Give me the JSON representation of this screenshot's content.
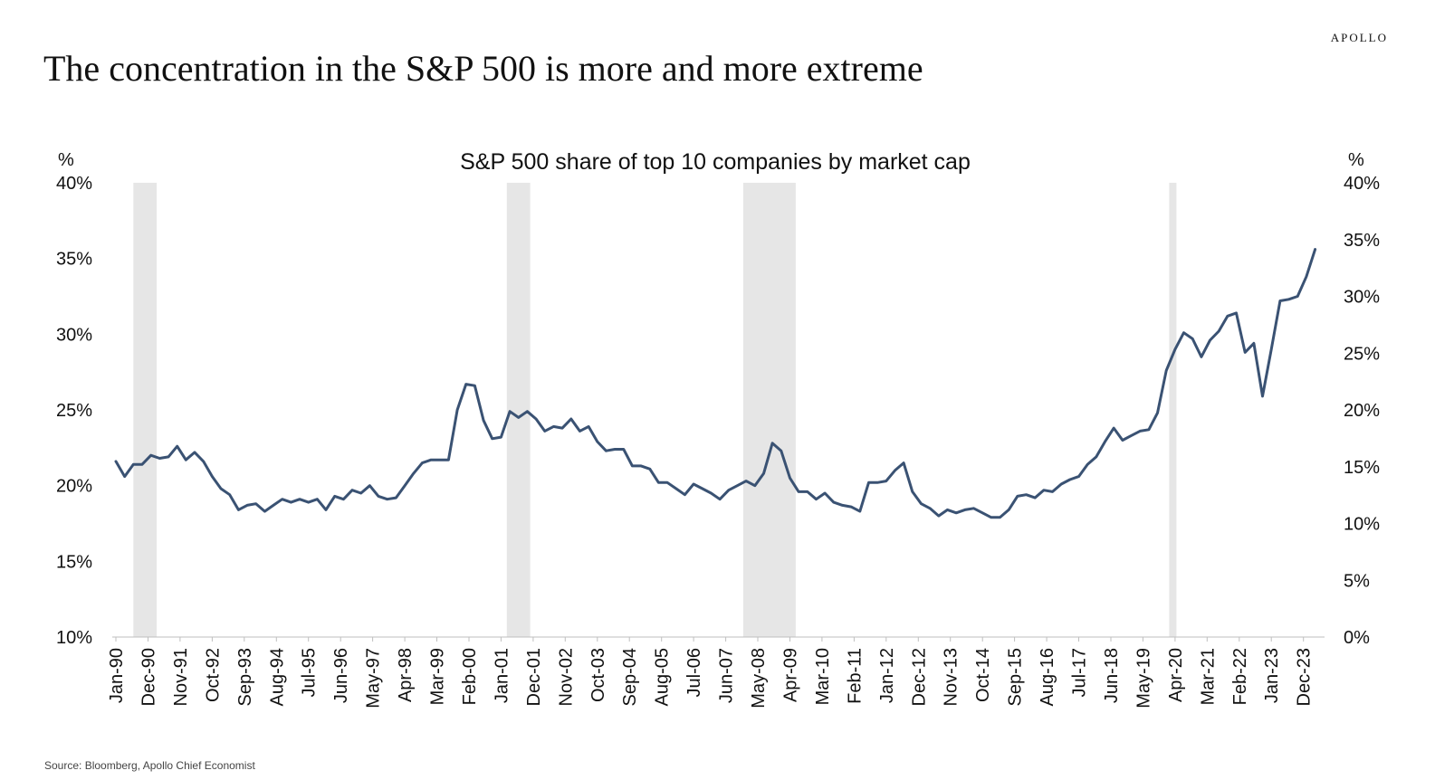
{
  "brand": "APOLLO",
  "headline": "The concentration in the S&P 500 is more and more extreme",
  "source": "Source: Bloomberg, Apollo Chief Economist",
  "colors": {
    "series_line": "#3a5273",
    "recession_shading": "#e6e6e6"
  },
  "chart_data": {
    "type": "line",
    "title": "S&P 500 share of top 10 companies by market cap",
    "y_left_unit": "%",
    "y_right_unit": "%",
    "y_left_ticks": [
      "40%",
      "35%",
      "30%",
      "25%",
      "20%",
      "15%",
      "10%"
    ],
    "y_right_ticks": [
      "40%",
      "35%",
      "30%",
      "25%",
      "20%",
      "15%",
      "10%",
      "5%",
      "0%"
    ],
    "ylim_left": [
      10,
      40
    ],
    "ylim_right": [
      0,
      40
    ],
    "x_ticks": [
      "Jan-90",
      "Dec-90",
      "Nov-91",
      "Oct-92",
      "Sep-93",
      "Aug-94",
      "Jul-95",
      "Jun-96",
      "May-97",
      "Apr-98",
      "Mar-99",
      "Feb-00",
      "Jan-01",
      "Dec-01",
      "Nov-02",
      "Oct-03",
      "Sep-04",
      "Aug-05",
      "Jul-06",
      "Jun-07",
      "May-08",
      "Apr-09",
      "Mar-10",
      "Feb-11",
      "Jan-12",
      "Dec-12",
      "Nov-13",
      "Oct-14",
      "Sep-15",
      "Aug-16",
      "Jul-17",
      "Jun-18",
      "May-19",
      "Apr-20",
      "Mar-21",
      "Feb-22",
      "Jan-23",
      "Dec-23"
    ],
    "x_range": [
      "Jan-90",
      "Jun-24"
    ],
    "grid": false,
    "legend": "none",
    "recessions": [
      {
        "start": "Jul-90",
        "end": "Mar-91"
      },
      {
        "start": "Mar-01",
        "end": "Nov-01"
      },
      {
        "start": "Dec-07",
        "end": "Jun-09"
      },
      {
        "start": "Feb-20",
        "end": "Apr-20"
      }
    ],
    "series": [
      {
        "axis": "left",
        "points": [
          [
            "Jan-90",
            21.6
          ],
          [
            "Apr-90",
            20.6
          ],
          [
            "Jul-90",
            21.4
          ],
          [
            "Oct-90",
            21.4
          ],
          [
            "Jan-91",
            22.0
          ],
          [
            "Apr-91",
            21.8
          ],
          [
            "Jul-91",
            21.9
          ],
          [
            "Oct-91",
            22.6
          ],
          [
            "Jan-92",
            21.7
          ],
          [
            "Apr-92",
            22.2
          ],
          [
            "Jul-92",
            21.6
          ],
          [
            "Oct-92",
            20.6
          ],
          [
            "Jan-93",
            19.8
          ],
          [
            "Apr-93",
            19.4
          ],
          [
            "Jul-93",
            18.4
          ],
          [
            "Oct-93",
            18.7
          ],
          [
            "Jan-94",
            18.8
          ],
          [
            "Apr-94",
            18.3
          ],
          [
            "Jul-94",
            18.7
          ],
          [
            "Oct-94",
            19.1
          ],
          [
            "Jan-95",
            18.9
          ],
          [
            "Apr-95",
            19.1
          ],
          [
            "Jul-95",
            18.9
          ],
          [
            "Oct-95",
            19.1
          ],
          [
            "Jan-96",
            18.4
          ],
          [
            "Apr-96",
            19.3
          ],
          [
            "Jul-96",
            19.1
          ],
          [
            "Oct-96",
            19.7
          ],
          [
            "Jan-97",
            19.5
          ],
          [
            "Apr-97",
            20.0
          ],
          [
            "Jul-97",
            19.3
          ],
          [
            "Oct-97",
            19.1
          ],
          [
            "Jan-98",
            19.2
          ],
          [
            "Apr-98",
            20.0
          ],
          [
            "Jul-98",
            20.8
          ],
          [
            "Oct-98",
            21.5
          ],
          [
            "Jan-99",
            21.7
          ],
          [
            "Apr-99",
            21.7
          ],
          [
            "Jul-99",
            21.7
          ],
          [
            "Oct-99",
            25.0
          ],
          [
            "Jan-00",
            26.7
          ],
          [
            "Apr-00",
            26.6
          ],
          [
            "Jul-00",
            24.3
          ],
          [
            "Oct-00",
            23.1
          ],
          [
            "Jan-01",
            23.2
          ],
          [
            "Apr-01",
            24.9
          ],
          [
            "Jul-01",
            24.5
          ],
          [
            "Oct-01",
            24.9
          ],
          [
            "Jan-02",
            24.4
          ],
          [
            "Apr-02",
            23.6
          ],
          [
            "Jul-02",
            23.9
          ],
          [
            "Oct-02",
            23.8
          ],
          [
            "Jan-03",
            24.4
          ],
          [
            "Apr-03",
            23.6
          ],
          [
            "Jul-03",
            23.9
          ],
          [
            "Oct-03",
            22.9
          ],
          [
            "Jan-04",
            22.3
          ],
          [
            "Apr-04",
            22.4
          ],
          [
            "Jul-04",
            22.4
          ],
          [
            "Oct-04",
            21.3
          ],
          [
            "Jan-05",
            21.3
          ],
          [
            "Apr-05",
            21.1
          ],
          [
            "Jul-05",
            20.2
          ],
          [
            "Oct-05",
            20.2
          ],
          [
            "Jan-06",
            19.8
          ],
          [
            "Apr-06",
            19.4
          ],
          [
            "Jul-06",
            20.1
          ],
          [
            "Oct-06",
            19.8
          ],
          [
            "Jan-07",
            19.5
          ],
          [
            "Apr-07",
            19.1
          ],
          [
            "Jul-07",
            19.7
          ],
          [
            "Oct-07",
            20.0
          ],
          [
            "Jan-08",
            20.3
          ],
          [
            "Apr-08",
            20.0
          ],
          [
            "Jul-08",
            20.8
          ],
          [
            "Oct-08",
            22.8
          ],
          [
            "Jan-09",
            22.3
          ],
          [
            "Apr-09",
            20.5
          ],
          [
            "Jul-09",
            19.6
          ],
          [
            "Oct-09",
            19.6
          ],
          [
            "Jan-10",
            19.1
          ],
          [
            "Apr-10",
            19.5
          ],
          [
            "Jul-10",
            18.9
          ],
          [
            "Oct-10",
            18.7
          ],
          [
            "Jan-11",
            18.6
          ],
          [
            "Apr-11",
            18.3
          ],
          [
            "Jul-11",
            20.2
          ],
          [
            "Oct-11",
            20.2
          ],
          [
            "Jan-12",
            20.3
          ],
          [
            "Apr-12",
            21.0
          ],
          [
            "Jul-12",
            21.5
          ],
          [
            "Oct-12",
            19.6
          ],
          [
            "Jan-13",
            18.8
          ],
          [
            "Apr-13",
            18.5
          ],
          [
            "Jul-13",
            18.0
          ],
          [
            "Oct-13",
            18.4
          ],
          [
            "Jan-14",
            18.2
          ],
          [
            "Apr-14",
            18.4
          ],
          [
            "Jul-14",
            18.5
          ],
          [
            "Oct-14",
            18.2
          ],
          [
            "Jan-15",
            17.9
          ],
          [
            "Apr-15",
            17.9
          ],
          [
            "Jul-15",
            18.4
          ],
          [
            "Oct-15",
            19.3
          ],
          [
            "Jan-16",
            19.4
          ],
          [
            "Apr-16",
            19.2
          ],
          [
            "Jul-16",
            19.7
          ],
          [
            "Oct-16",
            19.6
          ],
          [
            "Jan-17",
            20.1
          ],
          [
            "Apr-17",
            20.4
          ],
          [
            "Jul-17",
            20.6
          ],
          [
            "Oct-17",
            21.4
          ],
          [
            "Jan-18",
            21.9
          ],
          [
            "Apr-18",
            22.9
          ],
          [
            "Jul-18",
            23.8
          ],
          [
            "Oct-18",
            23.0
          ],
          [
            "Jan-19",
            23.3
          ],
          [
            "Apr-19",
            23.6
          ],
          [
            "Jul-19",
            23.7
          ],
          [
            "Oct-19",
            24.8
          ],
          [
            "Jan-20",
            27.6
          ],
          [
            "Apr-20",
            29.0
          ],
          [
            "Jul-20",
            30.1
          ],
          [
            "Oct-20",
            29.7
          ],
          [
            "Jan-21",
            28.5
          ],
          [
            "Apr-21",
            29.6
          ],
          [
            "Jul-21",
            30.2
          ],
          [
            "Oct-21",
            31.2
          ],
          [
            "Jan-22",
            31.4
          ],
          [
            "Apr-22",
            28.8
          ],
          [
            "Jul-22",
            29.4
          ],
          [
            "Oct-22",
            25.9
          ],
          [
            "Jan-23",
            29.0
          ],
          [
            "Apr-23",
            32.2
          ],
          [
            "Jul-23",
            32.3
          ],
          [
            "Oct-23",
            32.5
          ],
          [
            "Jan-24",
            33.8
          ],
          [
            "Apr-24",
            35.6
          ]
        ]
      }
    ]
  }
}
